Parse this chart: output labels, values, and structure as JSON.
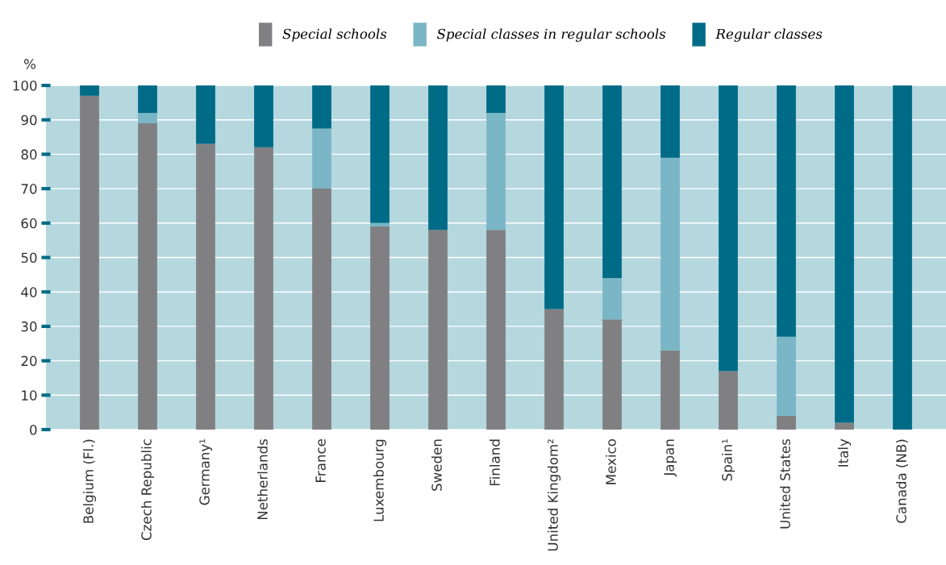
{
  "chart_data": {
    "type": "bar",
    "stacked": true,
    "ylabel": "%",
    "categories": [
      "Belgium (Fl.)",
      "Czech Republic",
      "Germany¹",
      "Netherlands",
      "France",
      "Luxembourg",
      "Sweden",
      "Finland",
      "United Kingdom²",
      "Mexico",
      "Japan",
      "Spain¹",
      "United States",
      "Italy",
      "Canada (NB)"
    ],
    "series": [
      {
        "name": "Special schools",
        "color": "#808083",
        "values": [
          97,
          89,
          83,
          82,
          70,
          59,
          58,
          58,
          35,
          32,
          23,
          17,
          4,
          2,
          0
        ]
      },
      {
        "name": "Special classes in regular schools",
        "color": "#7ab6c6",
        "values": [
          0,
          3,
          0,
          0,
          17.5,
          1,
          0,
          34,
          0,
          12,
          56,
          0,
          23,
          0,
          0
        ]
      },
      {
        "name": "Regular classes",
        "color": "#006b87",
        "values": [
          3,
          8,
          17,
          18,
          12.5,
          40,
          42,
          8,
          65,
          56,
          21,
          83,
          73,
          98,
          100
        ]
      }
    ],
    "ylim": [
      0,
      100
    ],
    "yticks": [
      0,
      10,
      20,
      30,
      40,
      50,
      60,
      70,
      80,
      90,
      100
    ],
    "grid": "y",
    "legend": "top"
  }
}
